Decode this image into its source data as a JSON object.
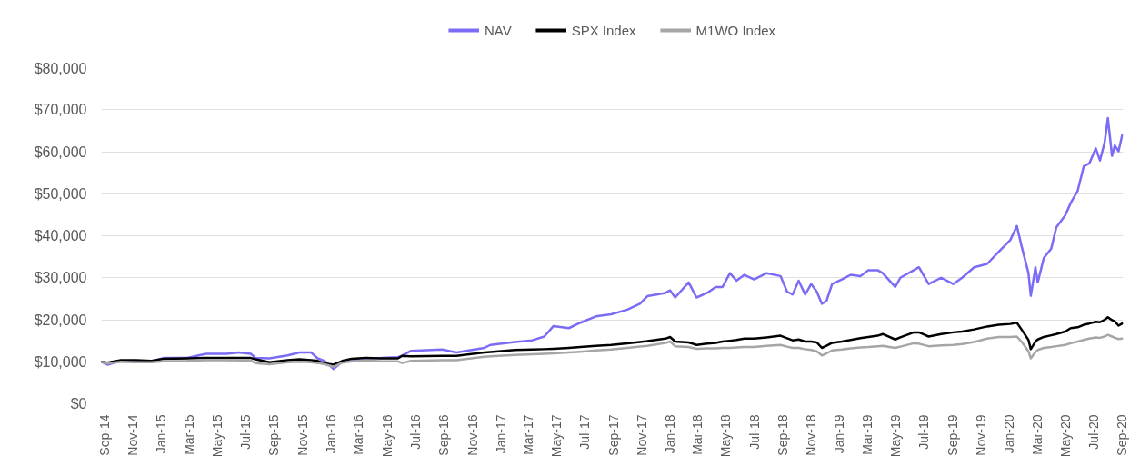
{
  "chart_data": {
    "type": "line",
    "legend": "top",
    "grid": "y",
    "xlim": [
      "2014-08-25",
      "2020-09-03"
    ],
    "xticks": [
      {
        "value": "2014-09-01",
        "label": "Sep-14"
      },
      {
        "value": "2014-11-01",
        "label": "Nov-14"
      },
      {
        "value": "2015-01-01",
        "label": "Jan-15"
      },
      {
        "value": "2015-03-01",
        "label": "Mar-15"
      },
      {
        "value": "2015-05-01",
        "label": "May-15"
      },
      {
        "value": "2015-07-01",
        "label": "Jul-15"
      },
      {
        "value": "2015-09-01",
        "label": "Sep-15"
      },
      {
        "value": "2015-11-01",
        "label": "Nov-15"
      },
      {
        "value": "2016-01-01",
        "label": "Jan-16"
      },
      {
        "value": "2016-03-01",
        "label": "Mar-16"
      },
      {
        "value": "2016-05-01",
        "label": "May-16"
      },
      {
        "value": "2016-07-01",
        "label": "Jul-16"
      },
      {
        "value": "2016-09-01",
        "label": "Sep-16"
      },
      {
        "value": "2016-11-01",
        "label": "Nov-16"
      },
      {
        "value": "2017-01-01",
        "label": "Jan-17"
      },
      {
        "value": "2017-03-01",
        "label": "Mar-17"
      },
      {
        "value": "2017-05-01",
        "label": "May-17"
      },
      {
        "value": "2017-07-01",
        "label": "Jul-17"
      },
      {
        "value": "2017-09-01",
        "label": "Sep-17"
      },
      {
        "value": "2017-11-01",
        "label": "Nov-17"
      },
      {
        "value": "2018-01-01",
        "label": "Jan-18"
      },
      {
        "value": "2018-03-01",
        "label": "Mar-18"
      },
      {
        "value": "2018-05-01",
        "label": "May-18"
      },
      {
        "value": "2018-07-01",
        "label": "Jul-18"
      },
      {
        "value": "2018-09-01",
        "label": "Sep-18"
      },
      {
        "value": "2018-11-01",
        "label": "Nov-18"
      },
      {
        "value": "2019-01-01",
        "label": "Jan-19"
      },
      {
        "value": "2019-03-01",
        "label": "Mar-19"
      },
      {
        "value": "2019-05-01",
        "label": "May-19"
      },
      {
        "value": "2019-07-01",
        "label": "Jul-19"
      },
      {
        "value": "2019-09-01",
        "label": "Sep-19"
      },
      {
        "value": "2019-11-01",
        "label": "Nov-19"
      },
      {
        "value": "2020-01-01",
        "label": "Jan-20"
      },
      {
        "value": "2020-03-01",
        "label": "Mar-20"
      },
      {
        "value": "2020-05-01",
        "label": "May-20"
      },
      {
        "value": "2020-07-01",
        "label": "Jul-20"
      },
      {
        "value": "2020-09-01",
        "label": "Sep-20"
      }
    ],
    "ylim": [
      0,
      80000
    ],
    "yticks": [
      {
        "value": 0,
        "label": "$0"
      },
      {
        "value": 10000,
        "label": "$10,000"
      },
      {
        "value": 20000,
        "label": "$20,000"
      },
      {
        "value": 30000,
        "label": "$30,000"
      },
      {
        "value": 40000,
        "label": "$40,000"
      },
      {
        "value": 50000,
        "label": "$50,000"
      },
      {
        "value": 60000,
        "label": "$60,000"
      },
      {
        "value": 70000,
        "label": "$70,000"
      },
      {
        "value": 80000,
        "label": "$80,000"
      }
    ],
    "x": [
      "2014-08-25",
      "2014-09-07",
      "2014-10-06",
      "2014-11-08",
      "2014-12-11",
      "2015-01-06",
      "2015-02-26",
      "2015-04-07",
      "2015-05-21",
      "2015-06-16",
      "2015-07-13",
      "2015-07-23",
      "2015-08-22",
      "2015-09-30",
      "2015-10-26",
      "2015-11-20",
      "2015-12-04",
      "2015-12-19",
      "2016-01-07",
      "2016-01-26",
      "2016-02-15",
      "2016-03-16",
      "2016-04-19",
      "2016-05-25",
      "2016-06-03",
      "2016-06-22",
      "2016-08-28",
      "2016-09-28",
      "2016-11-27",
      "2016-12-10",
      "2017-02-01",
      "2017-03-10",
      "2017-04-05",
      "2017-04-25",
      "2017-05-28",
      "2017-06-22",
      "2017-07-25",
      "2017-08-27",
      "2017-10-01",
      "2017-10-28",
      "2017-11-13",
      "2017-12-22",
      "2018-01-01",
      "2018-01-12",
      "2018-02-10",
      "2018-02-27",
      "2018-03-22",
      "2018-04-09",
      "2018-04-24",
      "2018-05-10",
      "2018-05-24",
      "2018-06-10",
      "2018-07-01",
      "2018-07-28",
      "2018-08-27",
      "2018-09-10",
      "2018-09-22",
      "2018-10-05",
      "2018-10-19",
      "2018-11-01",
      "2018-11-13",
      "2018-11-24",
      "2018-12-04",
      "2018-12-16",
      "2019-01-06",
      "2019-01-25",
      "2019-02-15",
      "2019-03-04",
      "2019-03-24",
      "2019-04-04",
      "2019-05-01",
      "2019-05-12",
      "2019-06-10",
      "2019-06-21",
      "2019-07-12",
      "2019-08-08",
      "2019-09-03",
      "2019-09-22",
      "2019-10-18",
      "2019-11-15",
      "2019-12-10",
      "2020-01-04",
      "2020-01-18",
      "2020-01-28",
      "2020-02-12",
      "2020-02-17",
      "2020-02-27",
      "2020-03-03",
      "2020-03-16",
      "2020-04-01",
      "2020-04-12",
      "2020-05-01",
      "2020-05-13",
      "2020-05-28",
      "2020-06-10",
      "2020-06-22",
      "2020-07-06",
      "2020-07-15",
      "2020-07-25",
      "2020-08-01",
      "2020-08-10",
      "2020-08-16",
      "2020-08-24",
      "2020-09-01"
    ],
    "series": [
      {
        "name": "NAV",
        "color": "#7b6cf6",
        "values": [
          10000,
          9300,
          10200,
          9900,
          10100,
          10900,
          10900,
          11900,
          11900,
          12200,
          11900,
          10900,
          10800,
          11500,
          12200,
          12200,
          10800,
          10200,
          8300,
          10000,
          10400,
          10800,
          10900,
          11100,
          11500,
          12600,
          12900,
          12200,
          13300,
          14000,
          14700,
          15100,
          16000,
          18500,
          18000,
          19300,
          20800,
          21300,
          22400,
          23800,
          25600,
          26400,
          27000,
          25300,
          28900,
          25300,
          26400,
          27800,
          27800,
          31100,
          29300,
          30700,
          29600,
          31100,
          30400,
          26700,
          26000,
          29300,
          26000,
          28500,
          26700,
          23800,
          24500,
          28500,
          29600,
          30700,
          30400,
          31800,
          31800,
          31100,
          27800,
          30000,
          31800,
          32500,
          28500,
          30000,
          28500,
          30000,
          32500,
          33300,
          36200,
          39000,
          42300,
          37600,
          31100,
          25700,
          32500,
          28900,
          34700,
          36900,
          42000,
          44800,
          47800,
          50700,
          56500,
          57200,
          60800,
          57900,
          62200,
          68000,
          59000,
          61500,
          60100,
          64000
        ]
      },
      {
        "name": "SPX Index",
        "color": "#000000",
        "values": [
          10000,
          9800,
          10400,
          10400,
          10200,
          10700,
          10800,
          10900,
          10900,
          10900,
          10900,
          10600,
          9900,
          10400,
          10600,
          10400,
          10200,
          9600,
          9300,
          10200,
          10700,
          10900,
          10800,
          10800,
          11400,
          11300,
          11400,
          11400,
          12200,
          12300,
          12800,
          12900,
          13000,
          13100,
          13300,
          13500,
          13800,
          14000,
          14400,
          14700,
          14900,
          15500,
          15900,
          14800,
          14600,
          14000,
          14300,
          14500,
          14800,
          15000,
          15200,
          15500,
          15500,
          15800,
          16200,
          15600,
          15100,
          15300,
          14800,
          14800,
          14600,
          13300,
          13800,
          14500,
          14800,
          15200,
          15600,
          15900,
          16200,
          16600,
          15300,
          15800,
          17000,
          17000,
          16000,
          16600,
          17000,
          17200,
          17700,
          18400,
          18800,
          19000,
          19300,
          17700,
          15200,
          13000,
          14800,
          15300,
          15900,
          16300,
          16600,
          17200,
          18000,
          18200,
          18800,
          19100,
          19500,
          19400,
          20000,
          20600,
          19900,
          19600,
          18600,
          19100
        ]
      },
      {
        "name": "M1WO Index",
        "color": "#a6a6a6",
        "values": [
          10000,
          9600,
          10000,
          9900,
          9900,
          10100,
          10200,
          10400,
          10400,
          10300,
          10300,
          9700,
          9400,
          9900,
          10000,
          9900,
          9700,
          9400,
          8800,
          9800,
          10100,
          10300,
          10100,
          10100,
          9700,
          10200,
          10400,
          10400,
          11200,
          11300,
          11600,
          11800,
          11900,
          12000,
          12200,
          12400,
          12700,
          12900,
          13300,
          13600,
          13800,
          14500,
          14800,
          13700,
          13500,
          13100,
          13200,
          13200,
          13300,
          13300,
          13400,
          13500,
          13500,
          13800,
          14000,
          13600,
          13300,
          13300,
          13000,
          12800,
          12500,
          11500,
          12000,
          12700,
          12900,
          13200,
          13400,
          13500,
          13700,
          13800,
          13300,
          13600,
          14400,
          14300,
          13700,
          13900,
          14000,
          14200,
          14700,
          15500,
          15900,
          15900,
          16000,
          14800,
          12500,
          10800,
          12300,
          12800,
          13300,
          13500,
          13700,
          14000,
          14400,
          14800,
          15200,
          15500,
          15800,
          15700,
          16000,
          16400,
          16000,
          15700,
          15400,
          15500
        ]
      }
    ]
  }
}
